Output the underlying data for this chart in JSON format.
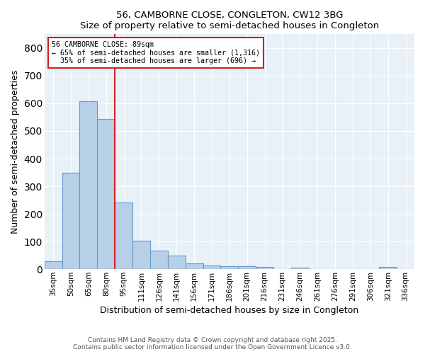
{
  "title1": "56, CAMBORNE CLOSE, CONGLETON, CW12 3BG",
  "title2": "Size of property relative to semi-detached houses in Congleton",
  "xlabel": "Distribution of semi-detached houses by size in Congleton",
  "ylabel": "Number of semi-detached properties",
  "categories": [
    "35sqm",
    "50sqm",
    "65sqm",
    "80sqm",
    "95sqm",
    "111sqm",
    "126sqm",
    "141sqm",
    "156sqm",
    "171sqm",
    "186sqm",
    "201sqm",
    "216sqm",
    "231sqm",
    "246sqm",
    "261sqm",
    "276sqm",
    "291sqm",
    "306sqm",
    "321sqm",
    "336sqm"
  ],
  "values": [
    28,
    348,
    608,
    543,
    240,
    102,
    68,
    48,
    20,
    14,
    10,
    10,
    7,
    0,
    5,
    0,
    0,
    0,
    0,
    8,
    0
  ],
  "bar_color": "#b8cfe8",
  "bar_edge_color": "#6699cc",
  "marker_bin_index": 3,
  "marker_color": "#cc2222",
  "annotation_line1": "56 CAMBORNE CLOSE: 89sqm",
  "annotation_line2": "← 65% of semi-detached houses are smaller (1,316)",
  "annotation_line3": "  35% of semi-detached houses are larger (696) →",
  "annotation_box_color": "#ffffff",
  "annotation_box_edge": "#cc2222",
  "footer1": "Contains HM Land Registry data © Crown copyright and database right 2025.",
  "footer2": "Contains public sector information licensed under the Open Government Licence v3.0.",
  "ylim": [
    0,
    850
  ],
  "yticks": [
    0,
    100,
    200,
    300,
    400,
    500,
    600,
    700,
    800
  ],
  "background_color": "#e8f0f8",
  "grid_color": "#ffffff",
  "fig_background": "#ffffff"
}
